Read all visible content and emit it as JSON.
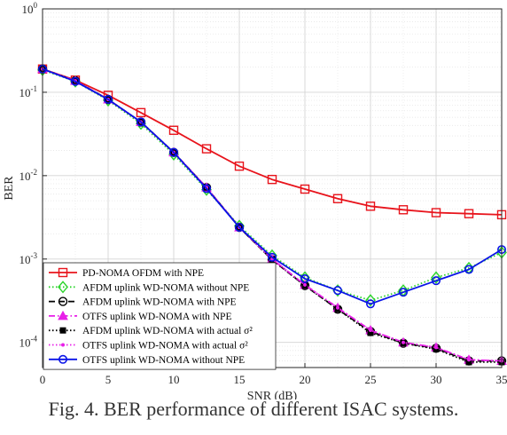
{
  "chart_data": {
    "type": "line",
    "xlabel": "SNR (dB)",
    "ylabel": "BER",
    "xlim": [
      0,
      35
    ],
    "ylim": [
      5e-05,
      1
    ],
    "yscale": "log",
    "grid": true,
    "legend_position": "bottom-left",
    "x_ticks": [
      0,
      5,
      10,
      15,
      20,
      25,
      30,
      35
    ],
    "y_ticks": [
      {
        "value": 1,
        "mantissa": "10",
        "exponent": "0"
      },
      {
        "value": 0.1,
        "mantissa": "10",
        "exponent": "-1"
      },
      {
        "value": 0.01,
        "mantissa": "10",
        "exponent": "-2"
      },
      {
        "value": 0.001,
        "mantissa": "10",
        "exponent": "-3"
      },
      {
        "value": 0.0001,
        "mantissa": "10",
        "exponent": "-4"
      }
    ],
    "x": [
      0,
      2.5,
      5,
      7.5,
      10,
      12.5,
      15,
      17.5,
      20,
      22.5,
      25,
      27.5,
      30,
      32.5,
      35
    ],
    "series": [
      {
        "name": "PD-NOMA OFDM with NPE",
        "color": "#e8141c",
        "dash": "solid",
        "marker": "square",
        "values": [
          0.19,
          0.14,
          0.092,
          0.057,
          0.035,
          0.021,
          0.013,
          0.009,
          0.0069,
          0.0053,
          0.0043,
          0.0039,
          0.0036,
          0.0035,
          0.0034
        ]
      },
      {
        "name": "AFDM uplink WD-NOMA without NPE",
        "color": "#2bd42b",
        "dash": "dotted",
        "marker": "diamond",
        "values": [
          0.185,
          0.135,
          0.08,
          0.042,
          0.018,
          0.0068,
          0.0025,
          0.0011,
          0.0006,
          0.00042,
          0.00032,
          0.00042,
          0.0006,
          0.00078,
          0.0012
        ]
      },
      {
        "name": "AFDM uplink WD-NOMA with NPE",
        "color": "#000000",
        "dash": "dashed",
        "marker": "circle-open",
        "values": [
          0.19,
          0.137,
          0.082,
          0.044,
          0.019,
          0.0072,
          0.0024,
          0.00098,
          0.00048,
          0.00025,
          0.000135,
          9.8e-05,
          8.5e-05,
          6e-05,
          6e-05
        ]
      },
      {
        "name": "OTFS uplink WD-NOMA with NPE",
        "color": "#e81fe8",
        "dash": "dashdot",
        "marker": "triangle",
        "values": [
          0.19,
          0.137,
          0.082,
          0.044,
          0.019,
          0.0072,
          0.0024,
          0.001,
          0.00049,
          0.00026,
          0.00014,
          0.0001,
          8.7e-05,
          6.2e-05,
          6e-05
        ]
      },
      {
        "name": "AFDM uplink WD-NOMA with actual σ²",
        "color": "#000000",
        "dash": "dotted",
        "marker": "square-filled",
        "values": [
          0.19,
          0.137,
          0.082,
          0.044,
          0.019,
          0.0072,
          0.0024,
          0.00098,
          0.00048,
          0.00025,
          0.00013,
          9.8e-05,
          8.3e-05,
          5.8e-05,
          5.8e-05
        ]
      },
      {
        "name": "OTFS uplink WD-NOMA with actual σ²",
        "color": "#e81fe8",
        "dash": "dotted",
        "marker": "dot",
        "values": [
          0.19,
          0.137,
          0.082,
          0.044,
          0.019,
          0.0072,
          0.0024,
          0.001,
          0.00049,
          0.00026,
          0.00014,
          0.0001,
          8.7e-05,
          6.2e-05,
          6e-05
        ]
      },
      {
        "name": "OTFS uplink WD-NOMA without NPE",
        "color": "#0a14e8",
        "dash": "solid",
        "marker": "circle",
        "values": [
          0.19,
          0.135,
          0.082,
          0.044,
          0.019,
          0.007,
          0.0024,
          0.00105,
          0.00058,
          0.00042,
          0.00029,
          0.0004,
          0.00055,
          0.00075,
          0.0013
        ]
      }
    ]
  },
  "caption": "Fig. 4.  BER performance of different ISAC systems."
}
